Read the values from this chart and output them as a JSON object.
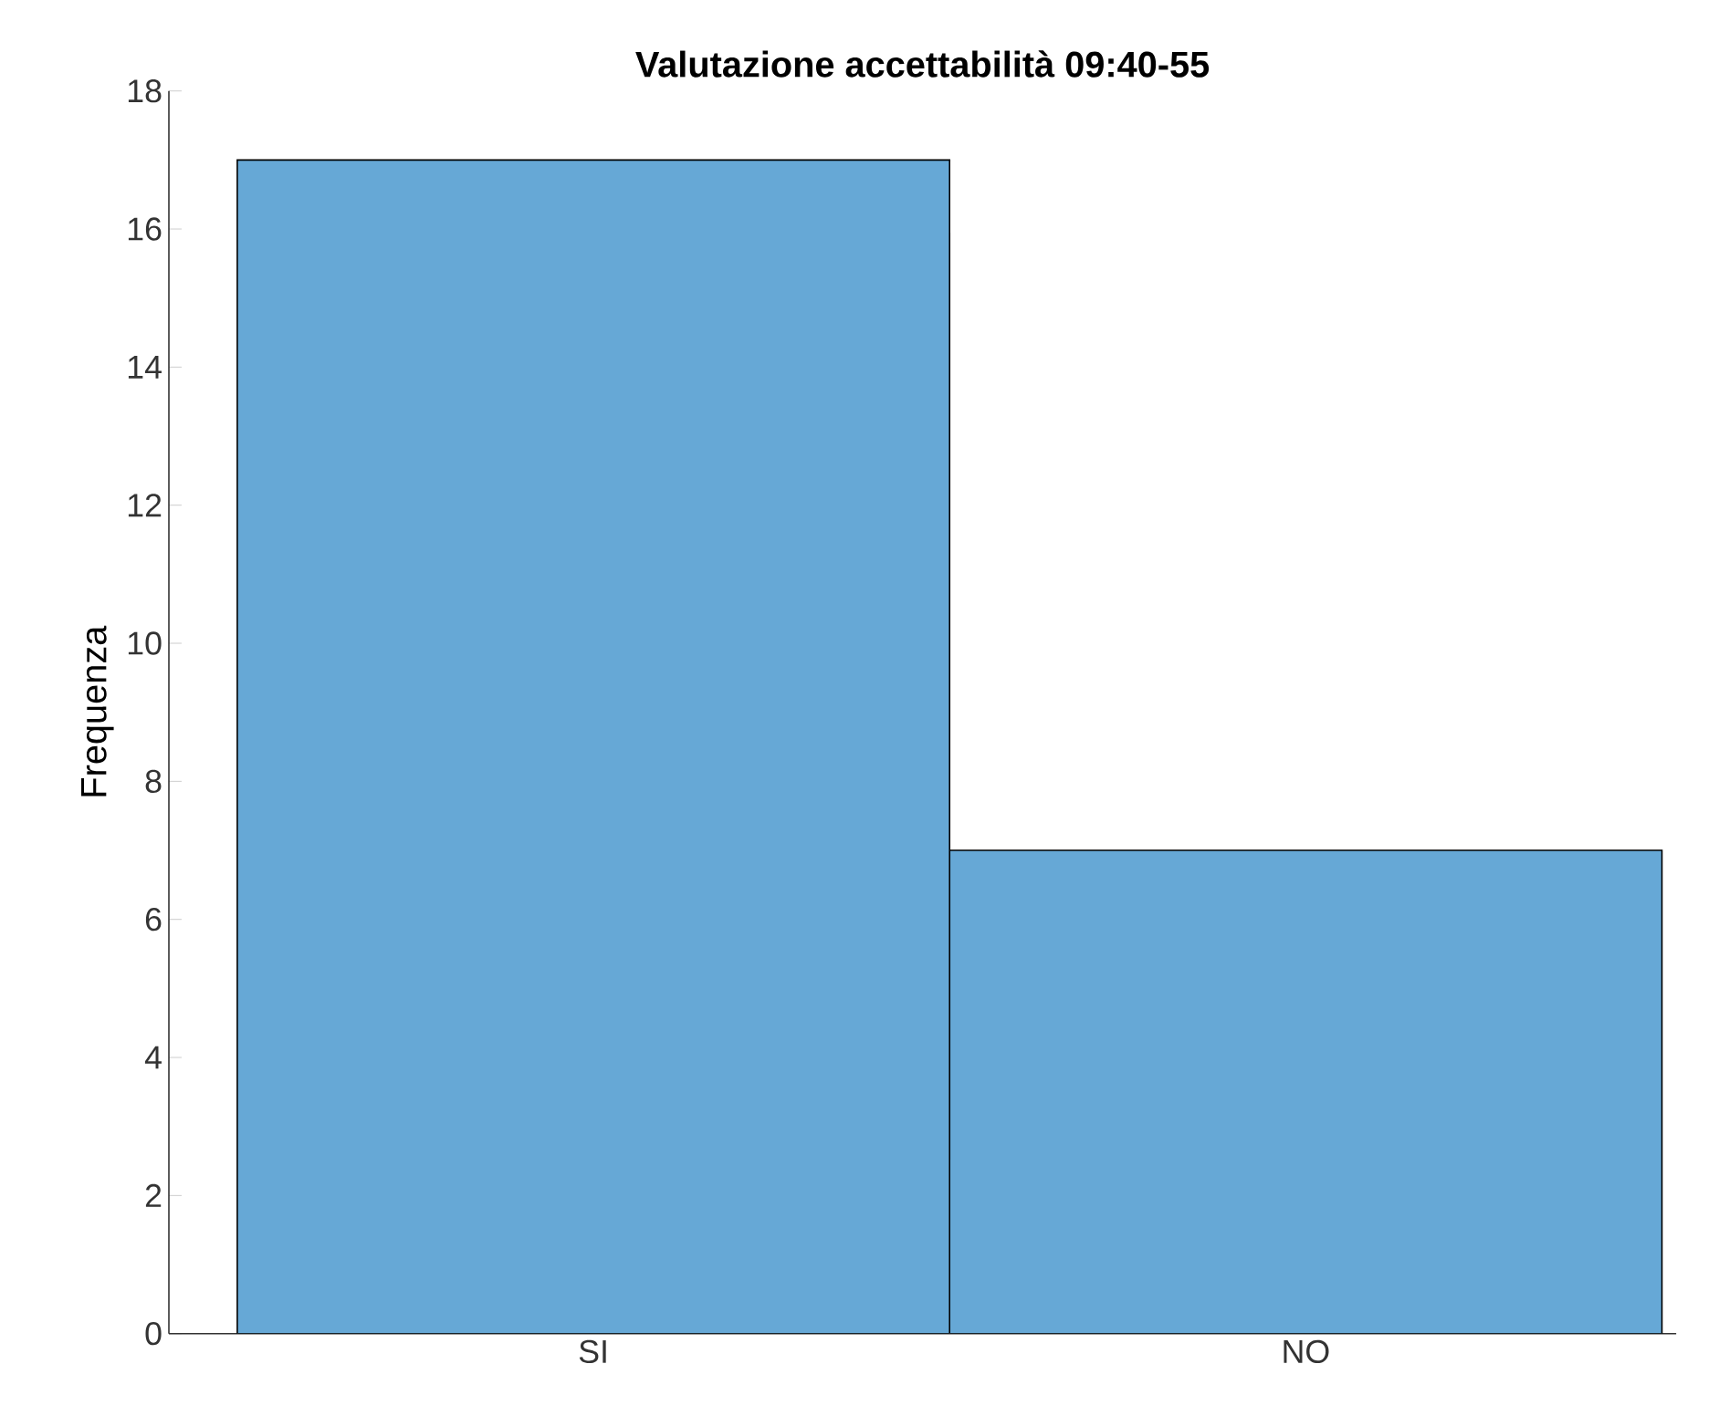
{
  "chart_data": {
    "type": "bar",
    "title": "Valutazione accettabilità 09:40-55",
    "ylabel": "Frequenza",
    "categories": [
      "SI",
      "NO"
    ],
    "values": [
      17,
      7
    ],
    "color": "#66a8d6",
    "ylim": [
      0,
      18
    ],
    "yticks": [
      0,
      2,
      4,
      6,
      8,
      10,
      12,
      14,
      16,
      18
    ]
  }
}
